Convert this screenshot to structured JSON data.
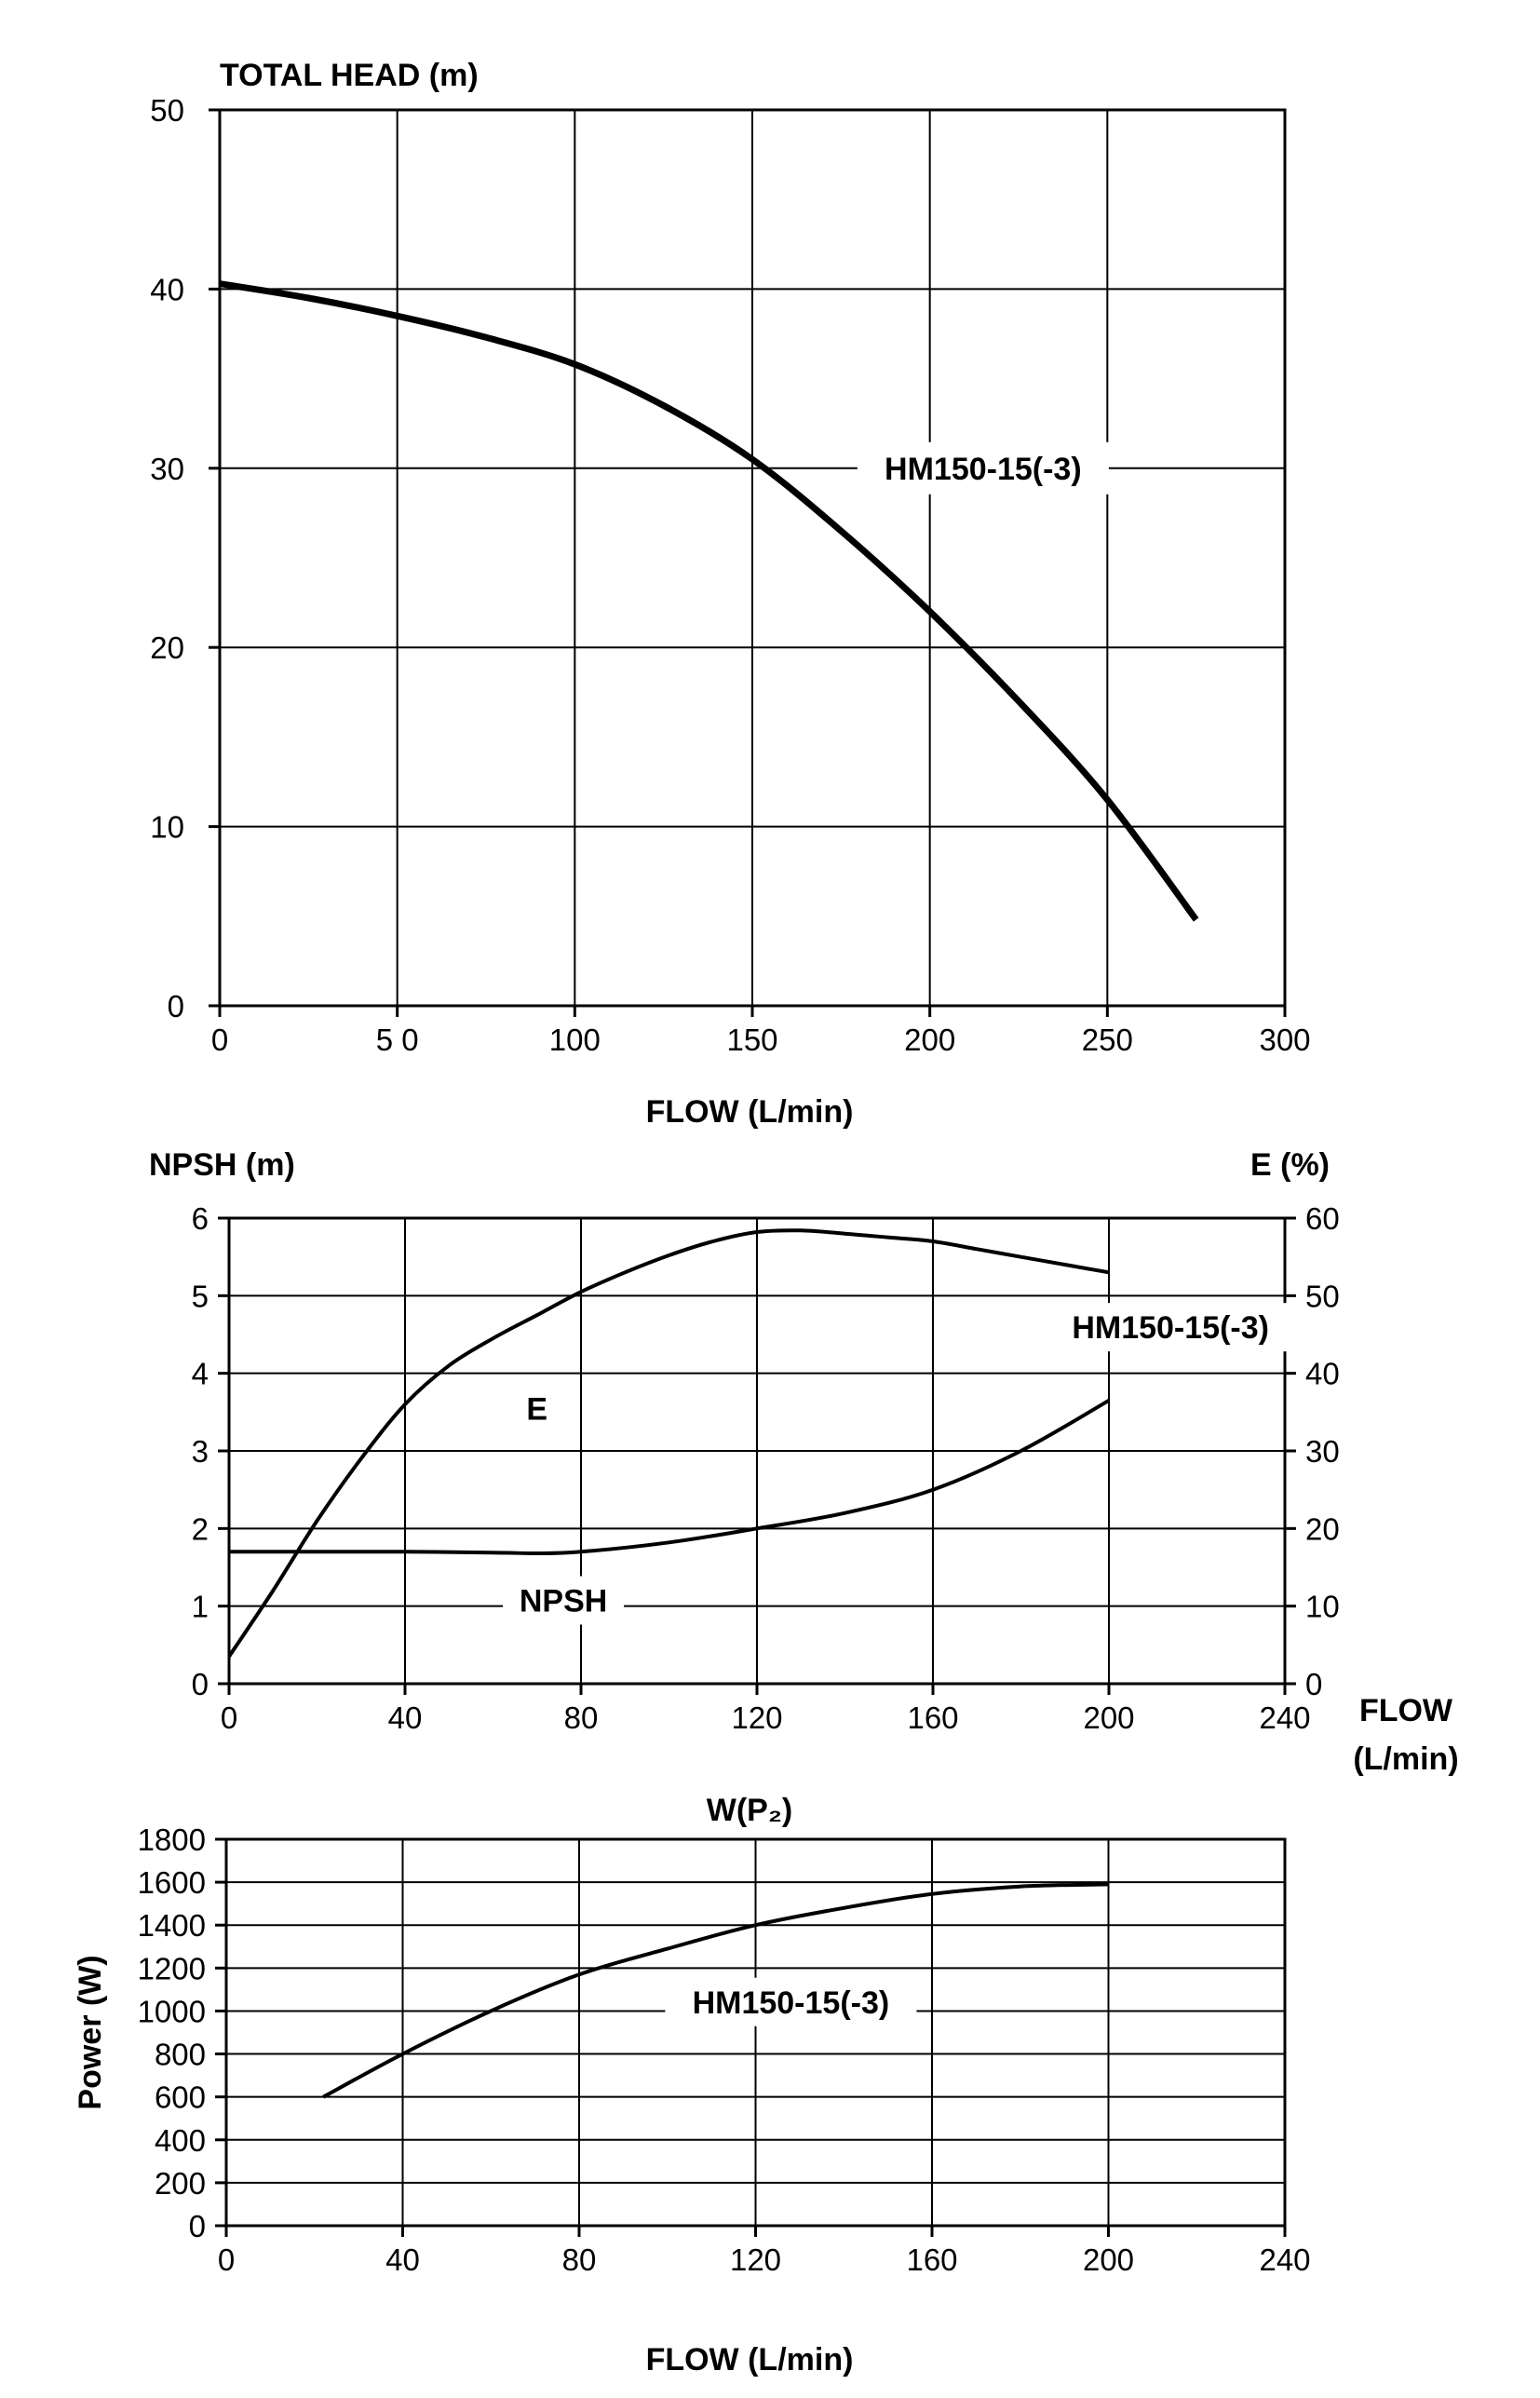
{
  "chart_data": [
    {
      "type": "line",
      "ylabel": "TOTAL HEAD (m)",
      "xlabel": "FLOW (L/min)",
      "xlim": [
        0,
        300
      ],
      "ylim": [
        0,
        50
      ],
      "x_ticks": [
        "0",
        "5 0",
        "100",
        "150",
        "200",
        "250",
        "300"
      ],
      "y_ticks": [
        "0",
        "10",
        "20",
        "30",
        "40",
        "50"
      ],
      "grid": true,
      "series": [
        {
          "name": "HM150-15(-3)",
          "x": [
            0,
            25,
            50,
            75,
            100,
            125,
            150,
            175,
            200,
            225,
            250,
            275
          ],
          "y": [
            40.3,
            39.5,
            38.5,
            37.3,
            35.8,
            33.5,
            30.5,
            26.5,
            22.0,
            17.0,
            11.5,
            4.8
          ]
        }
      ],
      "annotations": [
        {
          "text": "HM150-15(-3)",
          "x": 215,
          "y": 30
        }
      ]
    },
    {
      "type": "line",
      "ylabel_left": "NPSH (m)",
      "ylabel_right": "E (%)",
      "xlabel": "FLOW\n(L/min)",
      "xlabel_lines": [
        "FLOW",
        "(L/min)"
      ],
      "xlim": [
        0,
        240
      ],
      "ylim_left": [
        0,
        6
      ],
      "ylim_right": [
        0,
        60
      ],
      "x_ticks": [
        "0",
        "40",
        "80",
        "120",
        "160",
        "200",
        "240"
      ],
      "y_ticks_left": [
        "0",
        "1",
        "2",
        "3",
        "4",
        "5",
        "6"
      ],
      "y_ticks_right": [
        "0",
        "10",
        "20",
        "30",
        "40",
        "50",
        "60"
      ],
      "grid": true,
      "series": [
        {
          "name": "E",
          "axis": "right",
          "x": [
            0,
            10,
            20,
            30,
            40,
            50,
            60,
            70,
            80,
            90,
            100,
            110,
            120,
            130,
            140,
            150,
            160,
            170,
            180,
            190,
            200
          ],
          "y": [
            3.5,
            12,
            21,
            29,
            36,
            41,
            44.5,
            47.5,
            50.5,
            53,
            55.2,
            57,
            58.2,
            58.4,
            58,
            57.5,
            57,
            56,
            55,
            54,
            53
          ]
        },
        {
          "name": "NPSH",
          "axis": "left",
          "x": [
            0,
            20,
            40,
            60,
            70,
            80,
            100,
            120,
            140,
            160,
            180,
            200
          ],
          "y": [
            1.7,
            1.7,
            1.7,
            1.69,
            1.68,
            1.7,
            1.82,
            2.0,
            2.2,
            2.5,
            3.0,
            3.65
          ]
        }
      ],
      "annotations": [
        {
          "text": "E",
          "x": 70,
          "y_left": 3.4
        },
        {
          "text": "NPSH",
          "x": 76,
          "y_left": 0.93
        },
        {
          "text": "HM150-15(-3)",
          "x": 214,
          "y_left": 4.45
        }
      ]
    },
    {
      "type": "line",
      "title": "W(P₂)",
      "ylabel": "Power (W)",
      "xlabel": "FLOW (L/min)",
      "xlim": [
        0,
        240
      ],
      "ylim": [
        0,
        1800
      ],
      "x_ticks": [
        "0",
        "40",
        "80",
        "120",
        "160",
        "200",
        "240"
      ],
      "y_ticks": [
        "0",
        "200",
        "400",
        "600",
        "800",
        "1000",
        "1200",
        "1400",
        "1600",
        "1800"
      ],
      "grid": true,
      "series": [
        {
          "name": "HM150-15(-3)",
          "x": [
            22,
            40,
            60,
            80,
            100,
            120,
            140,
            160,
            180,
            200
          ],
          "y": [
            600,
            800,
            1000,
            1170,
            1290,
            1400,
            1480,
            1545,
            1580,
            1590
          ]
        }
      ],
      "annotations": [
        {
          "text": "HM150-15(-3)",
          "x": 128,
          "y": 990
        }
      ]
    }
  ]
}
